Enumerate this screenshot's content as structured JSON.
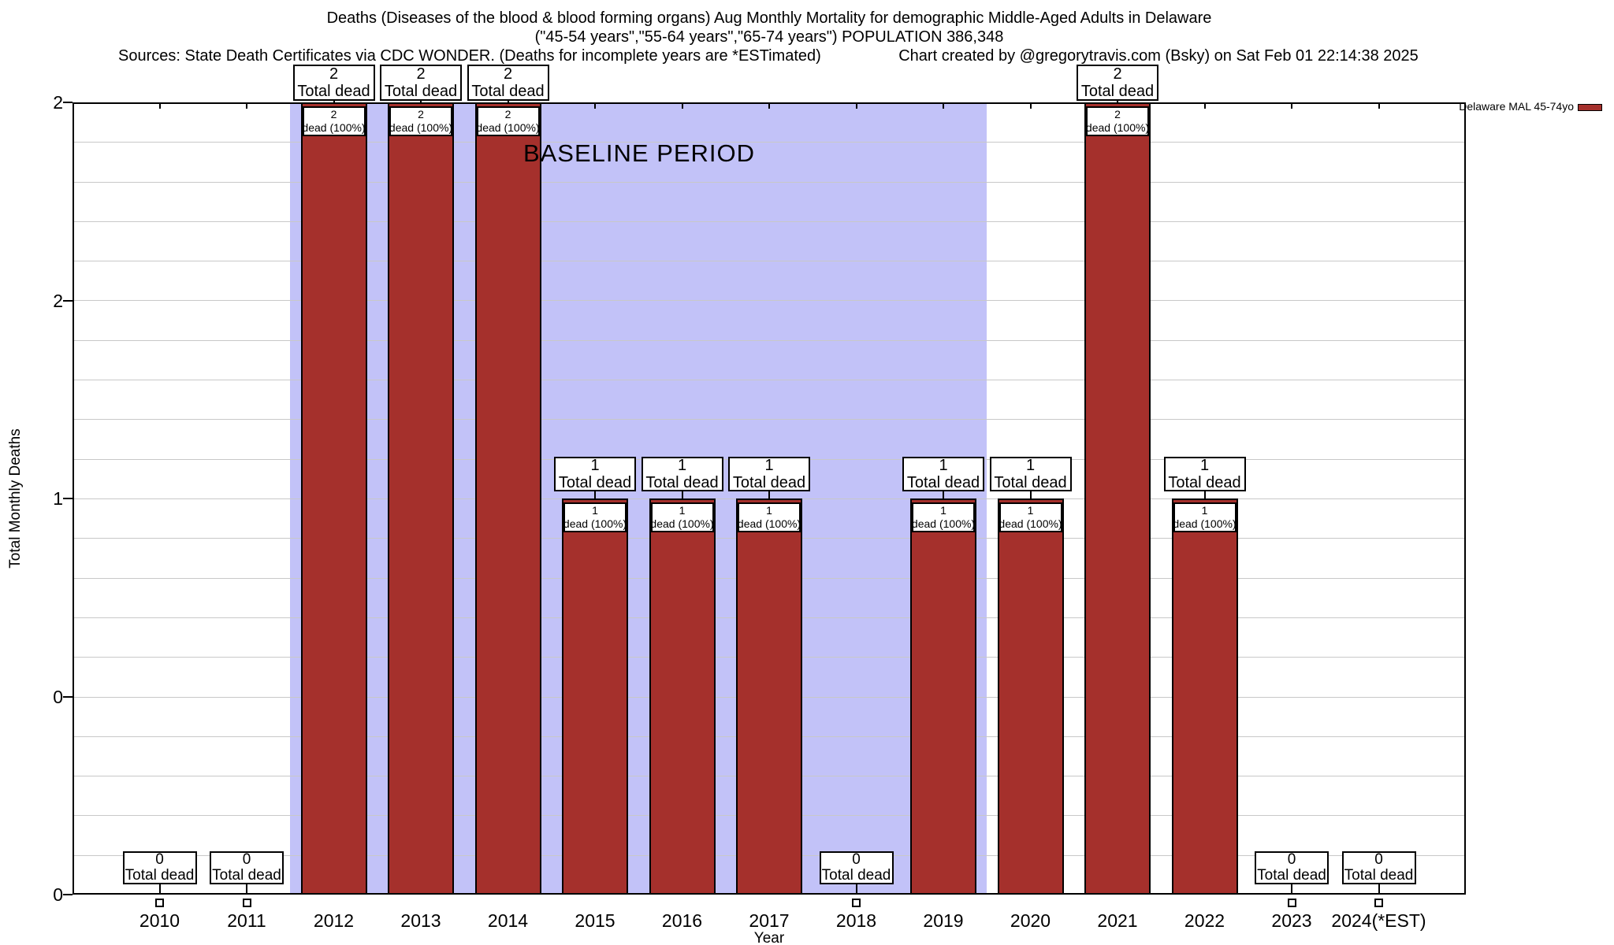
{
  "chart_data": {
    "type": "bar",
    "title": "Deaths (Diseases of the blood & blood forming organs) Aug Monthly Mortality for demographic Middle-Aged Adults in Delaware",
    "subtitle": "(\"45-54 years\",\"55-64 years\",\"65-74 years\") POPULATION 386,348",
    "source_note": "Sources: State Death Certificates via CDC WONDER. (Deaths for incomplete years are *ESTimated)",
    "credit_note": "Chart created by @gregorytravis.com (Bsky) on Sat Feb 01 22:14:38 2025",
    "xlabel": "Year",
    "ylabel": "Total Monthly Deaths",
    "categories": [
      "2010",
      "2011",
      "2012",
      "2013",
      "2014",
      "2015",
      "2016",
      "2017",
      "2018",
      "2019",
      "2020",
      "2021",
      "2022",
      "2023",
      "2024(*EST)"
    ],
    "years": [
      2010,
      2011,
      2012,
      2013,
      2014,
      2015,
      2016,
      2017,
      2018,
      2019,
      2020,
      2021,
      2022,
      2023,
      2024
    ],
    "series": [
      {
        "name": "Delaware MAL 45-74yo",
        "values": [
          0,
          0,
          2,
          2,
          2,
          1,
          1,
          1,
          0,
          1,
          1,
          2,
          1,
          0,
          0
        ],
        "color": "#a5302c"
      }
    ],
    "ylim": [
      0,
      2
    ],
    "ytick_values": [
      0,
      0.5,
      1,
      1.5,
      2
    ],
    "ytick_labels": [
      "0",
      "0",
      "1",
      "2",
      "2"
    ],
    "grid": {
      "horizontal": true,
      "minor_step_units": 0.1,
      "color": "#c8c8c8"
    },
    "legend": {
      "label": "Delaware MAL 45-74yo",
      "swatch_color": "#a5302c",
      "position": "top-right-outside"
    },
    "baseline_band": {
      "label": "BASELINE PERIOD",
      "from_year": 2011.5,
      "to_year": 2019.5,
      "color": "#c2c2f8"
    },
    "annotations": {
      "total_dead_label": "Total dead",
      "dead_pct_label": "dead (100%)"
    }
  }
}
